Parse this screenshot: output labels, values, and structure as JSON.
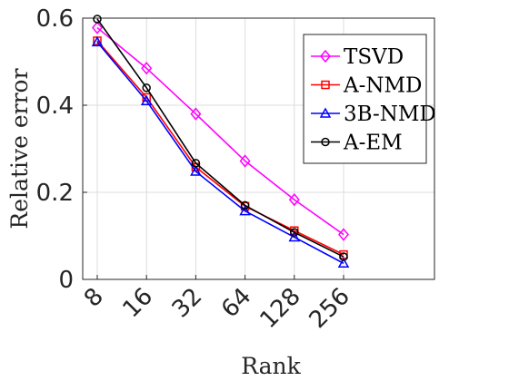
{
  "chart_data": {
    "type": "line",
    "title": "",
    "xlabel": "Rank",
    "ylabel": "Relative error",
    "categories": [
      "8",
      "16",
      "32",
      "64",
      "128",
      "256"
    ],
    "ylim": [
      0,
      0.6
    ],
    "yticks": [
      "0",
      "0.2",
      "0.4",
      "0.6"
    ],
    "grid": true,
    "legend_position": "top-right",
    "series": [
      {
        "name": "TSVD",
        "color": "#ff00ff",
        "marker": "diamond",
        "values": [
          0.578,
          0.485,
          0.38,
          0.272,
          0.183,
          0.103
        ]
      },
      {
        "name": "A-NMD",
        "color": "#ff0000",
        "marker": "square",
        "values": [
          0.548,
          0.418,
          0.258,
          0.168,
          0.112,
          0.057
        ]
      },
      {
        "name": "3B-NMD",
        "color": "#0000ff",
        "marker": "triangle",
        "values": [
          0.545,
          0.41,
          0.248,
          0.157,
          0.097,
          0.037
        ]
      },
      {
        "name": "A-EM",
        "color": "#000000",
        "marker": "circle",
        "values": [
          0.598,
          0.44,
          0.267,
          0.17,
          0.108,
          0.052
        ]
      }
    ]
  }
}
